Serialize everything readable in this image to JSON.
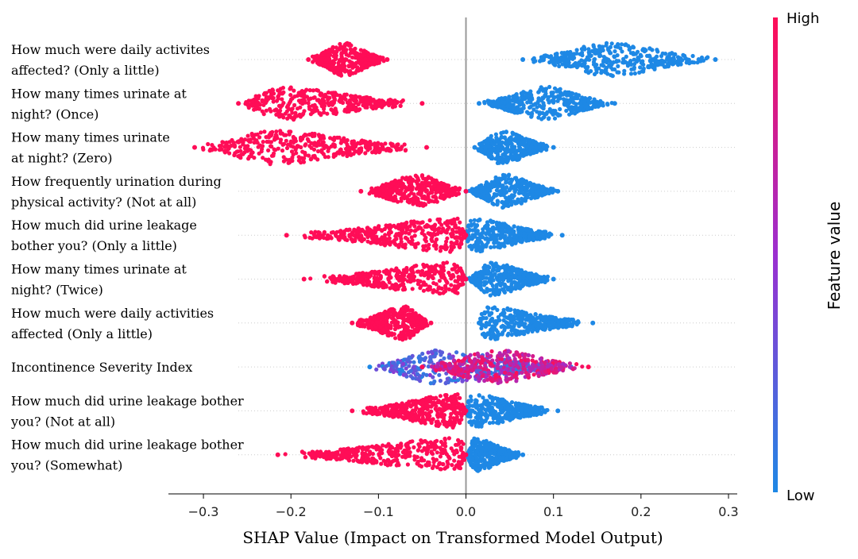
{
  "chart_data": {
    "type": "scatter",
    "subtype": "shap-beeswarm",
    "xlabel": "SHAP Value (Impact on Transformed Model Output)",
    "xlim": [
      -0.34,
      0.31
    ],
    "xticks": [
      -0.3,
      -0.2,
      -0.1,
      0.0,
      0.1,
      0.2,
      0.3
    ],
    "xtick_labels": [
      "−0.3",
      "−0.2",
      "−0.1",
      "0.0",
      "0.1",
      "0.2",
      "0.3"
    ],
    "zero_line": 0.0,
    "colorbar": {
      "title": "Feature value",
      "high_label": "High",
      "low_label": "Low",
      "high_color": "#ff0d57",
      "low_color": "#1e88e5"
    },
    "features": [
      {
        "label_lines": [
          "How much were daily activites",
          "affected? (Only a little)"
        ],
        "high_range": [
          -0.18,
          -0.09
        ],
        "high_peak": -0.14,
        "low_range": [
          0.065,
          0.285
        ],
        "low_peak": 0.165
      },
      {
        "label_lines": [
          "How many times urinate at",
          "night? (Once)"
        ],
        "high_range": [
          -0.26,
          -0.05
        ],
        "high_peak": -0.215,
        "low_range": [
          0.015,
          0.17
        ],
        "low_peak": 0.09
      },
      {
        "label_lines": [
          "How many times urinate",
          "at night? (Zero)"
        ],
        "high_range": [
          -0.31,
          -0.045
        ],
        "high_peak": -0.22,
        "low_range": [
          0.01,
          0.1
        ],
        "low_peak": 0.04
      },
      {
        "label_lines": [
          "How frequently urination during",
          "physical activity? (Not at all)"
        ],
        "high_range": [
          -0.12,
          0.0
        ],
        "high_peak": -0.055,
        "low_range": [
          0.0,
          0.105
        ],
        "low_peak": 0.045
      },
      {
        "label_lines": [
          "How much did urine leakage",
          "bother you? (Only a little)"
        ],
        "high_range": [
          -0.205,
          0.0
        ],
        "high_peak": -0.01,
        "low_range": [
          0.0,
          0.11
        ],
        "low_peak": 0.005
      },
      {
        "label_lines": [
          "How many times urinate at",
          "night? (Twice)"
        ],
        "high_range": [
          -0.185,
          0.0
        ],
        "high_peak": -0.01,
        "low_range": [
          0.0,
          0.1
        ],
        "low_peak": 0.03
      },
      {
        "label_lines": [
          "How much were daily activities",
          "affected (Only a little)"
        ],
        "high_range": [
          -0.13,
          -0.04
        ],
        "high_peak": -0.07,
        "low_range": [
          0.015,
          0.145
        ],
        "low_peak": 0.02
      },
      {
        "label_lines": [
          "Incontinence Severity Index"
        ],
        "high_range": [
          -0.05,
          0.14
        ],
        "high_peak": 0.035,
        "low_range": [
          -0.11,
          0.12
        ],
        "low_peak": -0.035
      },
      {
        "label_lines": [
          "How much did urine leakage bother",
          "you? (Not at all)"
        ],
        "high_range": [
          -0.13,
          0.0
        ],
        "high_peak": -0.01,
        "low_range": [
          0.0,
          0.105
        ],
        "low_peak": 0.005
      },
      {
        "label_lines": [
          "How much did urine leakage bother",
          "you? (Somewhat)"
        ],
        "high_range": [
          -0.215,
          0.0
        ],
        "high_peak": -0.005,
        "low_range": [
          0.0,
          0.065
        ],
        "low_peak": 0.01
      }
    ]
  }
}
